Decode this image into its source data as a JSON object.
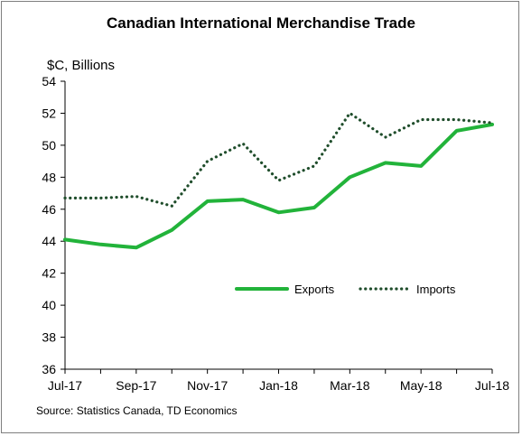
{
  "chart_data": {
    "type": "line",
    "title": "Canadian International Merchandise Trade",
    "ylabel": "$C, Billions",
    "source": "Source: Statistics Canada, TD Economics",
    "x": [
      "Jul-17",
      "Aug-17",
      "Sep-17",
      "Oct-17",
      "Nov-17",
      "Dec-17",
      "Jan-18",
      "Feb-18",
      "Mar-18",
      "Apr-18",
      "May-18",
      "Jun-18",
      "Jul-18"
    ],
    "x_tick_labels": [
      "Jul-17",
      "Sep-17",
      "Nov-17",
      "Jan-18",
      "Mar-18",
      "May-18",
      "Jul-18"
    ],
    "y_ticks": [
      36,
      38,
      40,
      42,
      44,
      46,
      48,
      50,
      52,
      54
    ],
    "ylim": [
      36,
      54
    ],
    "grid": false,
    "legend_placement": "lower-right",
    "series": [
      {
        "name": "Exports",
        "style": "solid",
        "color": "#22b33a",
        "values": [
          44.1,
          43.8,
          43.6,
          44.7,
          46.5,
          46.6,
          45.8,
          46.1,
          48.0,
          48.9,
          48.7,
          50.9,
          51.3
        ]
      },
      {
        "name": "Imports",
        "style": "dotted",
        "color": "#1f4d2b",
        "values": [
          46.7,
          46.7,
          46.8,
          46.2,
          49.0,
          50.1,
          47.8,
          48.7,
          52.0,
          50.5,
          51.6,
          51.6,
          51.4
        ]
      }
    ]
  }
}
